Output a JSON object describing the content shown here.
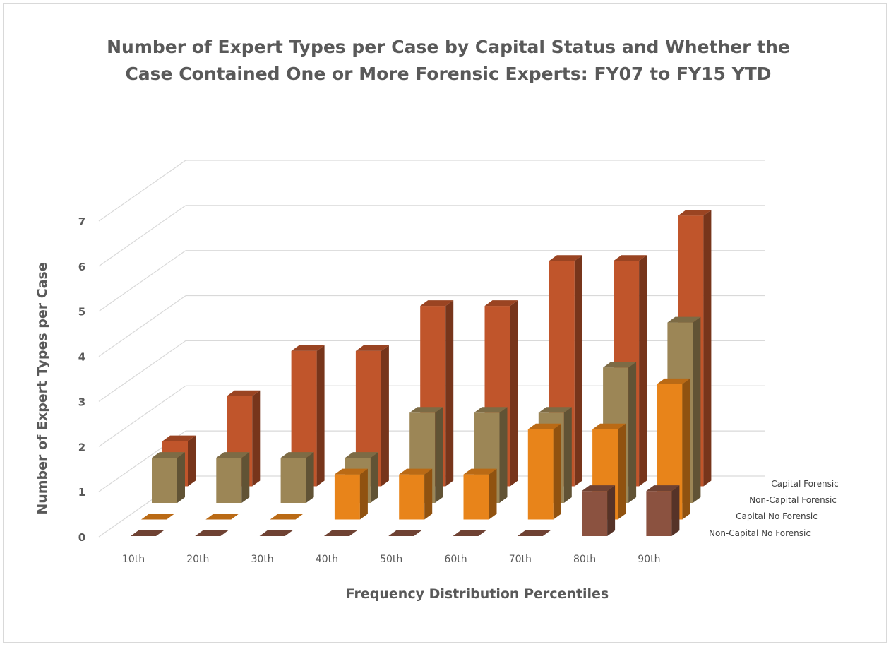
{
  "chart_data": {
    "type": "bar",
    "subtype": "3d-column",
    "title": "Number of Expert Types per Case by Capital Status and Whether the Case Contained One or More Forensic Experts: FY07 to FY15 YTD",
    "title_lines": [
      "Number of Expert Types per Case by Capital Status and Whether the",
      "Case Contained One or More Forensic Experts: FY07 to FY15 YTD"
    ],
    "xlabel": "Frequency Distribution Percentiles",
    "ylabel": "Number of Expert Types per Case",
    "ylim": [
      0,
      7
    ],
    "yticks": [
      "0",
      "1",
      "2",
      "3",
      "4",
      "5",
      "6",
      "7"
    ],
    "categories": [
      "10th",
      "20th",
      "30th",
      "40th",
      "50th",
      "60th",
      "70th",
      "80th",
      "90th"
    ],
    "grid": true,
    "legend_placement": "right (series labels on depth axis)",
    "series": [
      {
        "name": "Non-Capital No Forensic",
        "color": "#8B5240",
        "values": [
          0,
          0,
          0,
          0,
          0,
          0,
          0,
          1,
          1
        ]
      },
      {
        "name": "Capital No Forensic",
        "color": "#E8841A",
        "values": [
          0,
          0,
          0,
          1,
          1,
          1,
          2,
          2,
          3
        ]
      },
      {
        "name": "Non-Capital Forensic",
        "color": "#9C8656",
        "values": [
          1,
          1,
          1,
          1,
          2,
          2,
          2,
          3,
          4
        ]
      },
      {
        "name": "Capital Forensic",
        "color": "#C0552B",
        "values": [
          1,
          2,
          3,
          3,
          4,
          4,
          5,
          5,
          6
        ]
      }
    ]
  }
}
